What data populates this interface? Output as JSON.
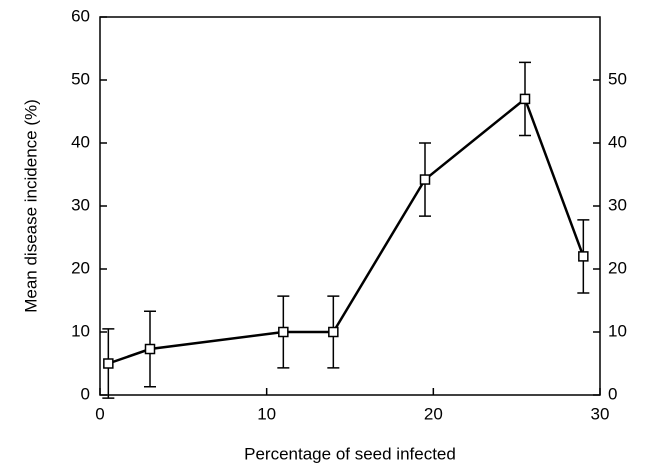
{
  "chart_data": {
    "type": "line",
    "xlabel": "Percentage of seed infected",
    "ylabel": "Mean disease incidence (%)",
    "x": [
      0.5,
      3,
      11,
      14,
      19.5,
      25.5,
      29
    ],
    "series": [
      {
        "color": "#000000",
        "values": [
          5,
          7.3,
          10,
          10,
          34.2,
          47,
          22
        ],
        "errors": [
          5.5,
          6,
          5.7,
          5.7,
          5.8,
          5.8,
          5.8
        ]
      }
    ],
    "xlim": [
      0,
      30
    ],
    "xticks": [
      0,
      10,
      20,
      30
    ],
    "ylim": [
      0,
      60
    ],
    "yticks": [
      0,
      10,
      20,
      30,
      40,
      50,
      60
    ],
    "y2lim": [
      0,
      60
    ],
    "y2ticks": [
      0,
      10,
      20,
      30,
      40,
      50
    ]
  }
}
